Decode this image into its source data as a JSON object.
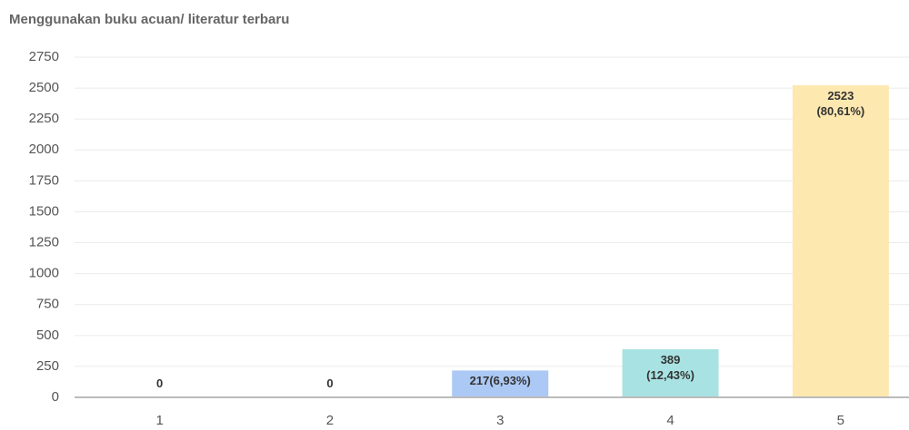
{
  "chart_data": {
    "type": "bar",
    "title": "Menggunakan buku acuan/ literatur terbaru",
    "categories": [
      "1",
      "2",
      "3",
      "4",
      "5"
    ],
    "values": [
      0,
      0,
      217,
      389,
      2523
    ],
    "value_labels": [
      "0",
      "0",
      "217(6,93%)",
      "389\n(12,43%)",
      "2523\n(80,61%)"
    ],
    "colors": [
      "#ffb1c1",
      "#ffcf9f",
      "#acc9f5",
      "#a9e2e2",
      "#fde8b0"
    ],
    "ylim": [
      0,
      2750
    ],
    "yticks": [
      0,
      250,
      500,
      750,
      1000,
      1250,
      1500,
      1750,
      2000,
      2250,
      2500,
      2750
    ],
    "grid": true
  }
}
